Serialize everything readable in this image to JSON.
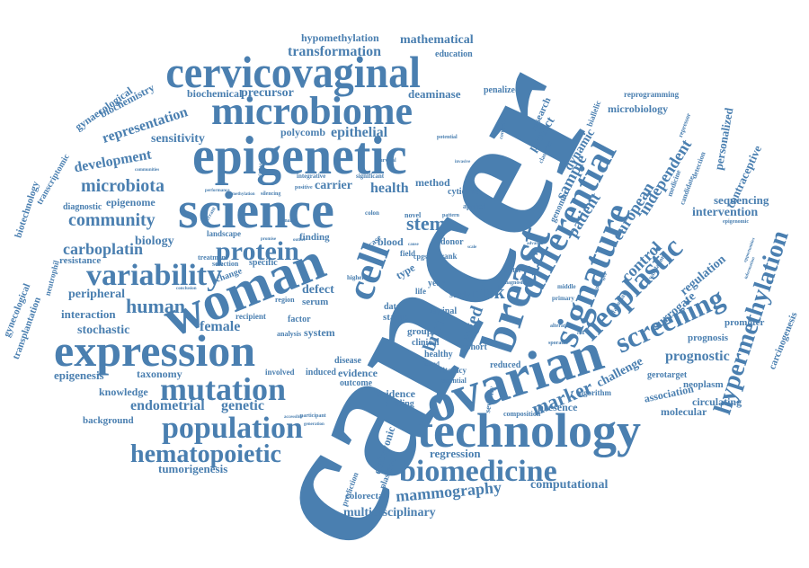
{
  "colors": {
    "ink": "#4a7fb0",
    "background": "#ffffff"
  },
  "words": {
    "cancer": "cancer",
    "cervicovaginal": "cervicovaginal",
    "microbiome": "microbiome",
    "epigenetic": "epigenetic",
    "science": "science",
    "woman": "woman",
    "expression": "expression",
    "ovarian": "ovarian",
    "technology": "technology",
    "biomedicine": "biomedicine",
    "breast": "breast",
    "differential": "differential",
    "signature": "signature",
    "neoplastic": "neoplastic",
    "screening": "screening",
    "hypermethylation": "hypermethylation",
    "mutation": "mutation",
    "population": "population",
    "hematopoietic": "hematopoietic",
    "variability": "variability",
    "protein": "protein",
    "cell": "cell",
    "community": "community",
    "microbiota": "microbiota",
    "carboplatin": "carboplatin",
    "development": "development",
    "representation": "representation",
    "transformation": "transformation",
    "hypomethylation": "hypomethylation",
    "mathematical": "mathematical",
    "education": "education",
    "biochemical": "biochemical",
    "precursor": "precursor",
    "deaminase": "deaminase",
    "penalized": "penalized",
    "polycomb": "polycomb",
    "epithelial": "epithelial",
    "sensitivity": "sensitivity",
    "biochemistry": "biochemistry",
    "gynaecological": "gynaecological",
    "transcriptomic": "transcriptomic",
    "biotechnology": "biotechnology",
    "gynecological": "gynecological",
    "transplantation": "transplantation",
    "neutrophil": "neutrophil",
    "epigenome": "epigenome",
    "diagnostic": "diagnostic",
    "biology": "biology",
    "resistance": "resistance",
    "peripheral": "peripheral",
    "interaction": "interaction",
    "human": "human",
    "stochastic": "stochastic",
    "female": "female",
    "epigenesis": "epigenesis",
    "taxonomy": "taxonomy",
    "knowledge": "knowledge",
    "endometrial": "endometrial",
    "genetic": "genetic",
    "background": "background",
    "tumorigenesis": "tumorigenesis",
    "health": "health",
    "carrier": "carrier",
    "stem": "stem",
    "method": "method",
    "cytidine": "cytidine",
    "blood": "blood",
    "finding": "finding",
    "risk": "risk",
    "aged": "aged",
    "brca": "brca",
    "type": "type",
    "field": "field",
    "data": "data",
    "status": "status",
    "group": "group",
    "clinical": "clinical",
    "healthy": "healthy",
    "vaginal": "vaginal",
    "study": "study",
    "year": "year",
    "case": "case",
    "cohort": "cohort",
    "reduced": "reduced",
    "disease": "disease",
    "evidence": "evidence",
    "system": "system",
    "serum": "serum",
    "factor": "factor",
    "defect": "defect",
    "outcome": "outcome",
    "incidence": "incidence",
    "binding": "binding",
    "regression": "regression",
    "presence": "presence",
    "marker": "marker",
    "challenge": "challenge",
    "association": "association",
    "molecular": "molecular",
    "circulating": "circulating",
    "neoplasm": "neoplasm",
    "gerotarget": "gerotarget",
    "prognostic": "prognostic",
    "prognosis": "prognosis",
    "promoter": "promoter",
    "carcinogenesis": "carcinogenesis",
    "surrogate": "surrogate",
    "regulation": "regulation",
    "intervention": "intervention",
    "sequencing": "sequencing",
    "contraceptive": "contraceptive",
    "personalized": "personalized",
    "microbiology": "microbiology",
    "reprogramming": "reprogramming",
    "independent": "independent",
    "european": "european",
    "patient": "patient",
    "sample": "sample",
    "dynamic": "dynamic",
    "predict": "predict",
    "control": "control",
    "research": "research",
    "genomic": "genomic",
    "mammography": "mammography",
    "computational": "computational",
    "multidisciplinary": "multidisciplinary",
    "colorectal": "colorectal",
    "embryonic": "embryonic",
    "plasmon": "plasmon",
    "prediction": "prediction",
    "literacy": "literacy",
    "induced": "induced",
    "involved": "involved",
    "recipient": "recipient",
    "specific": "specific",
    "landscape": "landscape",
    "treatment": "treatment",
    "selection": "selection",
    "change": "change",
    "region": "region",
    "analysis": "analysis",
    "donor": "donor",
    "rank": "rank",
    "applied": "applied",
    "pattern": "pattern",
    "novel": "novel",
    "colon": "colon",
    "higher": "higher",
    "cpgs": "cpgs",
    "life": "life",
    "island": "island",
    "essential": "essential",
    "severity": "severity",
    "algorithm": "algorithm",
    "detection": "detection",
    "candidate": "candidate",
    "medicine": "medicine",
    "repressor": "repressor",
    "validation": "validation",
    "younger": "younger",
    "fallopian": "fallopian",
    "primary": "primary",
    "middle": "middle",
    "profile": "profile",
    "diagnosis": "diagnosis",
    "alteration": "alteration",
    "sporadic": "sporadic",
    "composition": "composition",
    "biallelic": "biallelic",
    "classifier": "classifier",
    "condition": "condition",
    "potential": "potential",
    "significant": "significant",
    "integrative": "integrative",
    "positive": "positive",
    "considerable": "considerable",
    "survival": "survival",
    "communities": "communities",
    "performance": "performance",
    "aberrant": "aberrant",
    "methylation": "methylation",
    "silencing": "silencing",
    "dname": "dname",
    "outlier": "outlier",
    "promise": "promise",
    "accessible": "accessible",
    "participant": "participant",
    "generation": "generation",
    "opportunities": "opportunities",
    "epigenomic": "epigenomic",
    "information": "information",
    "conclusion": "conclusion",
    "cause": "cause",
    "scale": "scale",
    "advance": "advance",
    "invasive": "invasive",
    "risk_tiny": "risk"
  }
}
